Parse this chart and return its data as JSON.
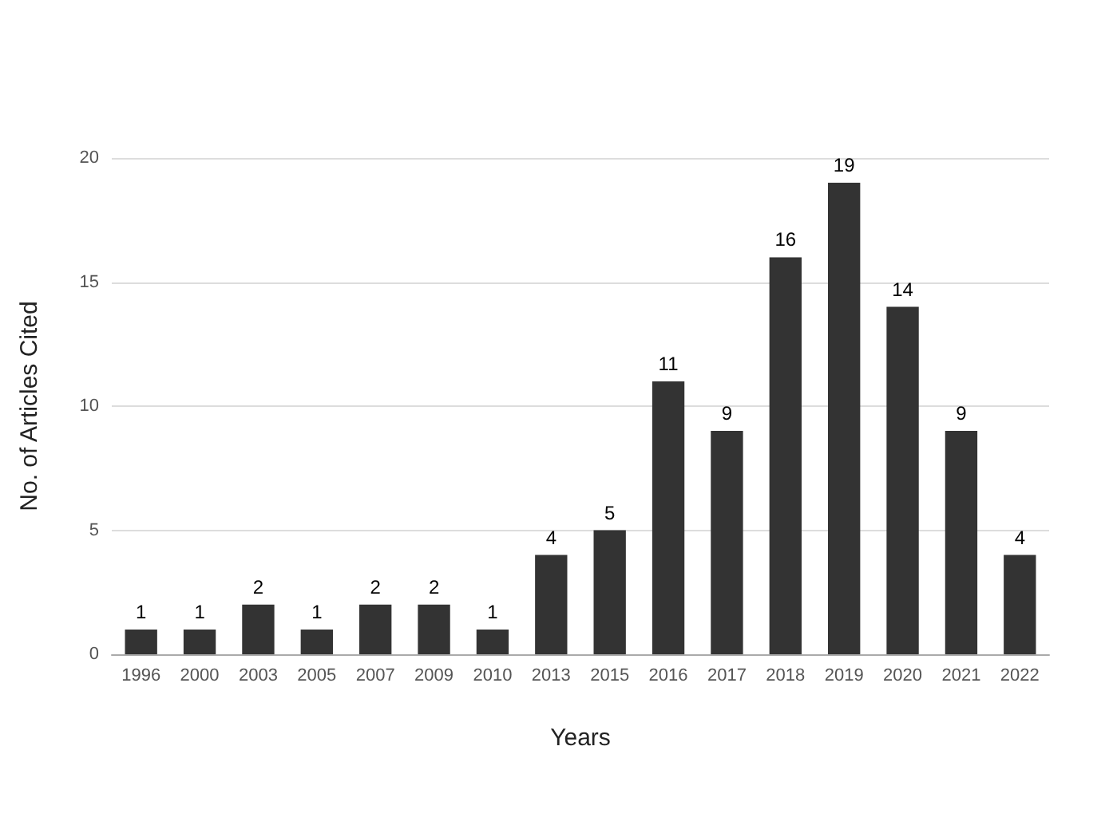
{
  "chart_data": {
    "type": "bar",
    "xlabel": "Years",
    "ylabel": "No. of Articles Cited",
    "categories": [
      "1996",
      "2000",
      "2003",
      "2005",
      "2007",
      "2009",
      "2010",
      "2013",
      "2015",
      "2016",
      "2017",
      "2018",
      "2019",
      "2020",
      "2021",
      "2022"
    ],
    "values": [
      1,
      1,
      2,
      1,
      2,
      2,
      1,
      4,
      5,
      11,
      9,
      16,
      19,
      14,
      9,
      4
    ],
    "color": "#333333",
    "ylim": [
      0,
      20
    ],
    "yticks": [
      0,
      5,
      10,
      15,
      20
    ],
    "grid": "y",
    "data_labels": true
  }
}
